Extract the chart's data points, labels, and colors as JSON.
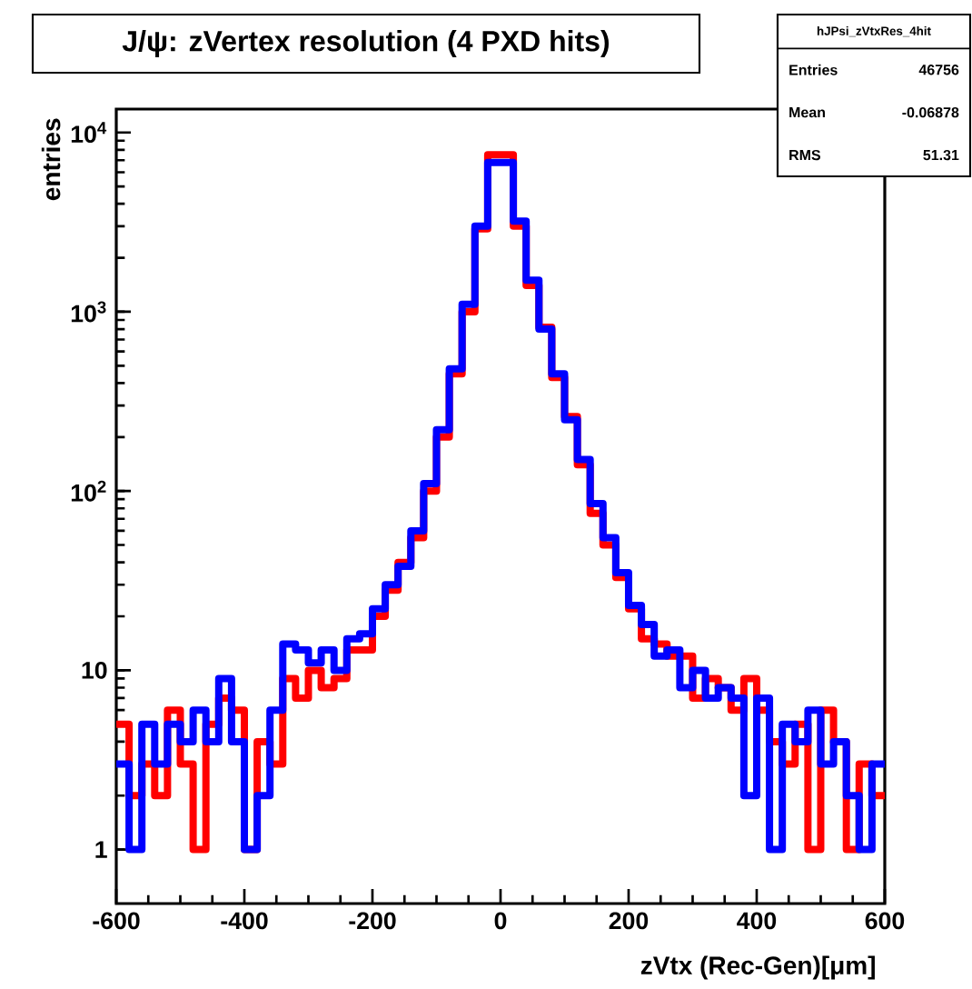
{
  "chart_data": {
    "type": "histogram",
    "title": "J/ψ: zVertex resolution (4 PXD hits)",
    "xlabel": "zVtx (Rec-Gen)[μm]",
    "ylabel": "entries",
    "bins": [
      -600,
      -580,
      -560,
      -540,
      -520,
      -500,
      -480,
      -460,
      -440,
      -420,
      -400,
      -380,
      -360,
      -340,
      -320,
      -300,
      -280,
      -260,
      -240,
      -220,
      -200,
      -180,
      -160,
      -140,
      -120,
      -100,
      -80,
      -60,
      -40,
      -20,
      0,
      20,
      40,
      60,
      80,
      100,
      120,
      140,
      160,
      180,
      200,
      220,
      240,
      260,
      280,
      300,
      320,
      340,
      360,
      380,
      400,
      420,
      440,
      460,
      480,
      500,
      520,
      540,
      560,
      580,
      600
    ],
    "series": [
      {
        "color": "#ff0000",
        "values": [
          5,
          2,
          3,
          2,
          6,
          3,
          1,
          5,
          7,
          6,
          1,
          4,
          3,
          9,
          7,
          10,
          8,
          9,
          13,
          13,
          20,
          28,
          40,
          55,
          100,
          200,
          450,
          1000,
          2900,
          7500,
          7500,
          3000,
          1400,
          820,
          430,
          260,
          140,
          75,
          50,
          33,
          22,
          15,
          14,
          12,
          12,
          7,
          9,
          8,
          6,
          9,
          6,
          4,
          3,
          5,
          1,
          6,
          4,
          1,
          3,
          2
        ]
      },
      {
        "color": "#0000ff",
        "values": [
          3,
          1,
          5,
          3,
          5,
          4,
          6,
          4,
          9,
          4,
          1,
          2,
          6,
          14,
          13,
          11,
          13,
          10,
          15,
          16,
          22,
          30,
          38,
          60,
          110,
          220,
          480,
          1100,
          3000,
          6800,
          6800,
          3200,
          1500,
          800,
          450,
          250,
          150,
          85,
          55,
          35,
          23,
          18,
          12,
          13,
          8,
          10,
          7,
          8,
          7,
          2,
          7,
          1,
          5,
          4,
          6,
          3,
          4,
          2,
          1,
          3
        ]
      }
    ],
    "log": true,
    "xlim": [
      -600,
      600
    ],
    "ylim": [
      0.5,
      13500
    ],
    "xticks": [
      -600,
      -400,
      -200,
      0,
      200,
      400,
      600
    ],
    "yticks": [
      1,
      10,
      {
        "value": 100,
        "label": "10$^{2}$"
      },
      {
        "value": 1000,
        "label": "10$^{3}$"
      },
      {
        "value": 10000,
        "label": "10$^{4}$"
      }
    ],
    "annotations": [
      "hJPsi_zVtxRes_4hit",
      "Entries",
      "46756",
      "Mean",
      "-0.06878",
      "RMS",
      "51.31"
    ]
  }
}
